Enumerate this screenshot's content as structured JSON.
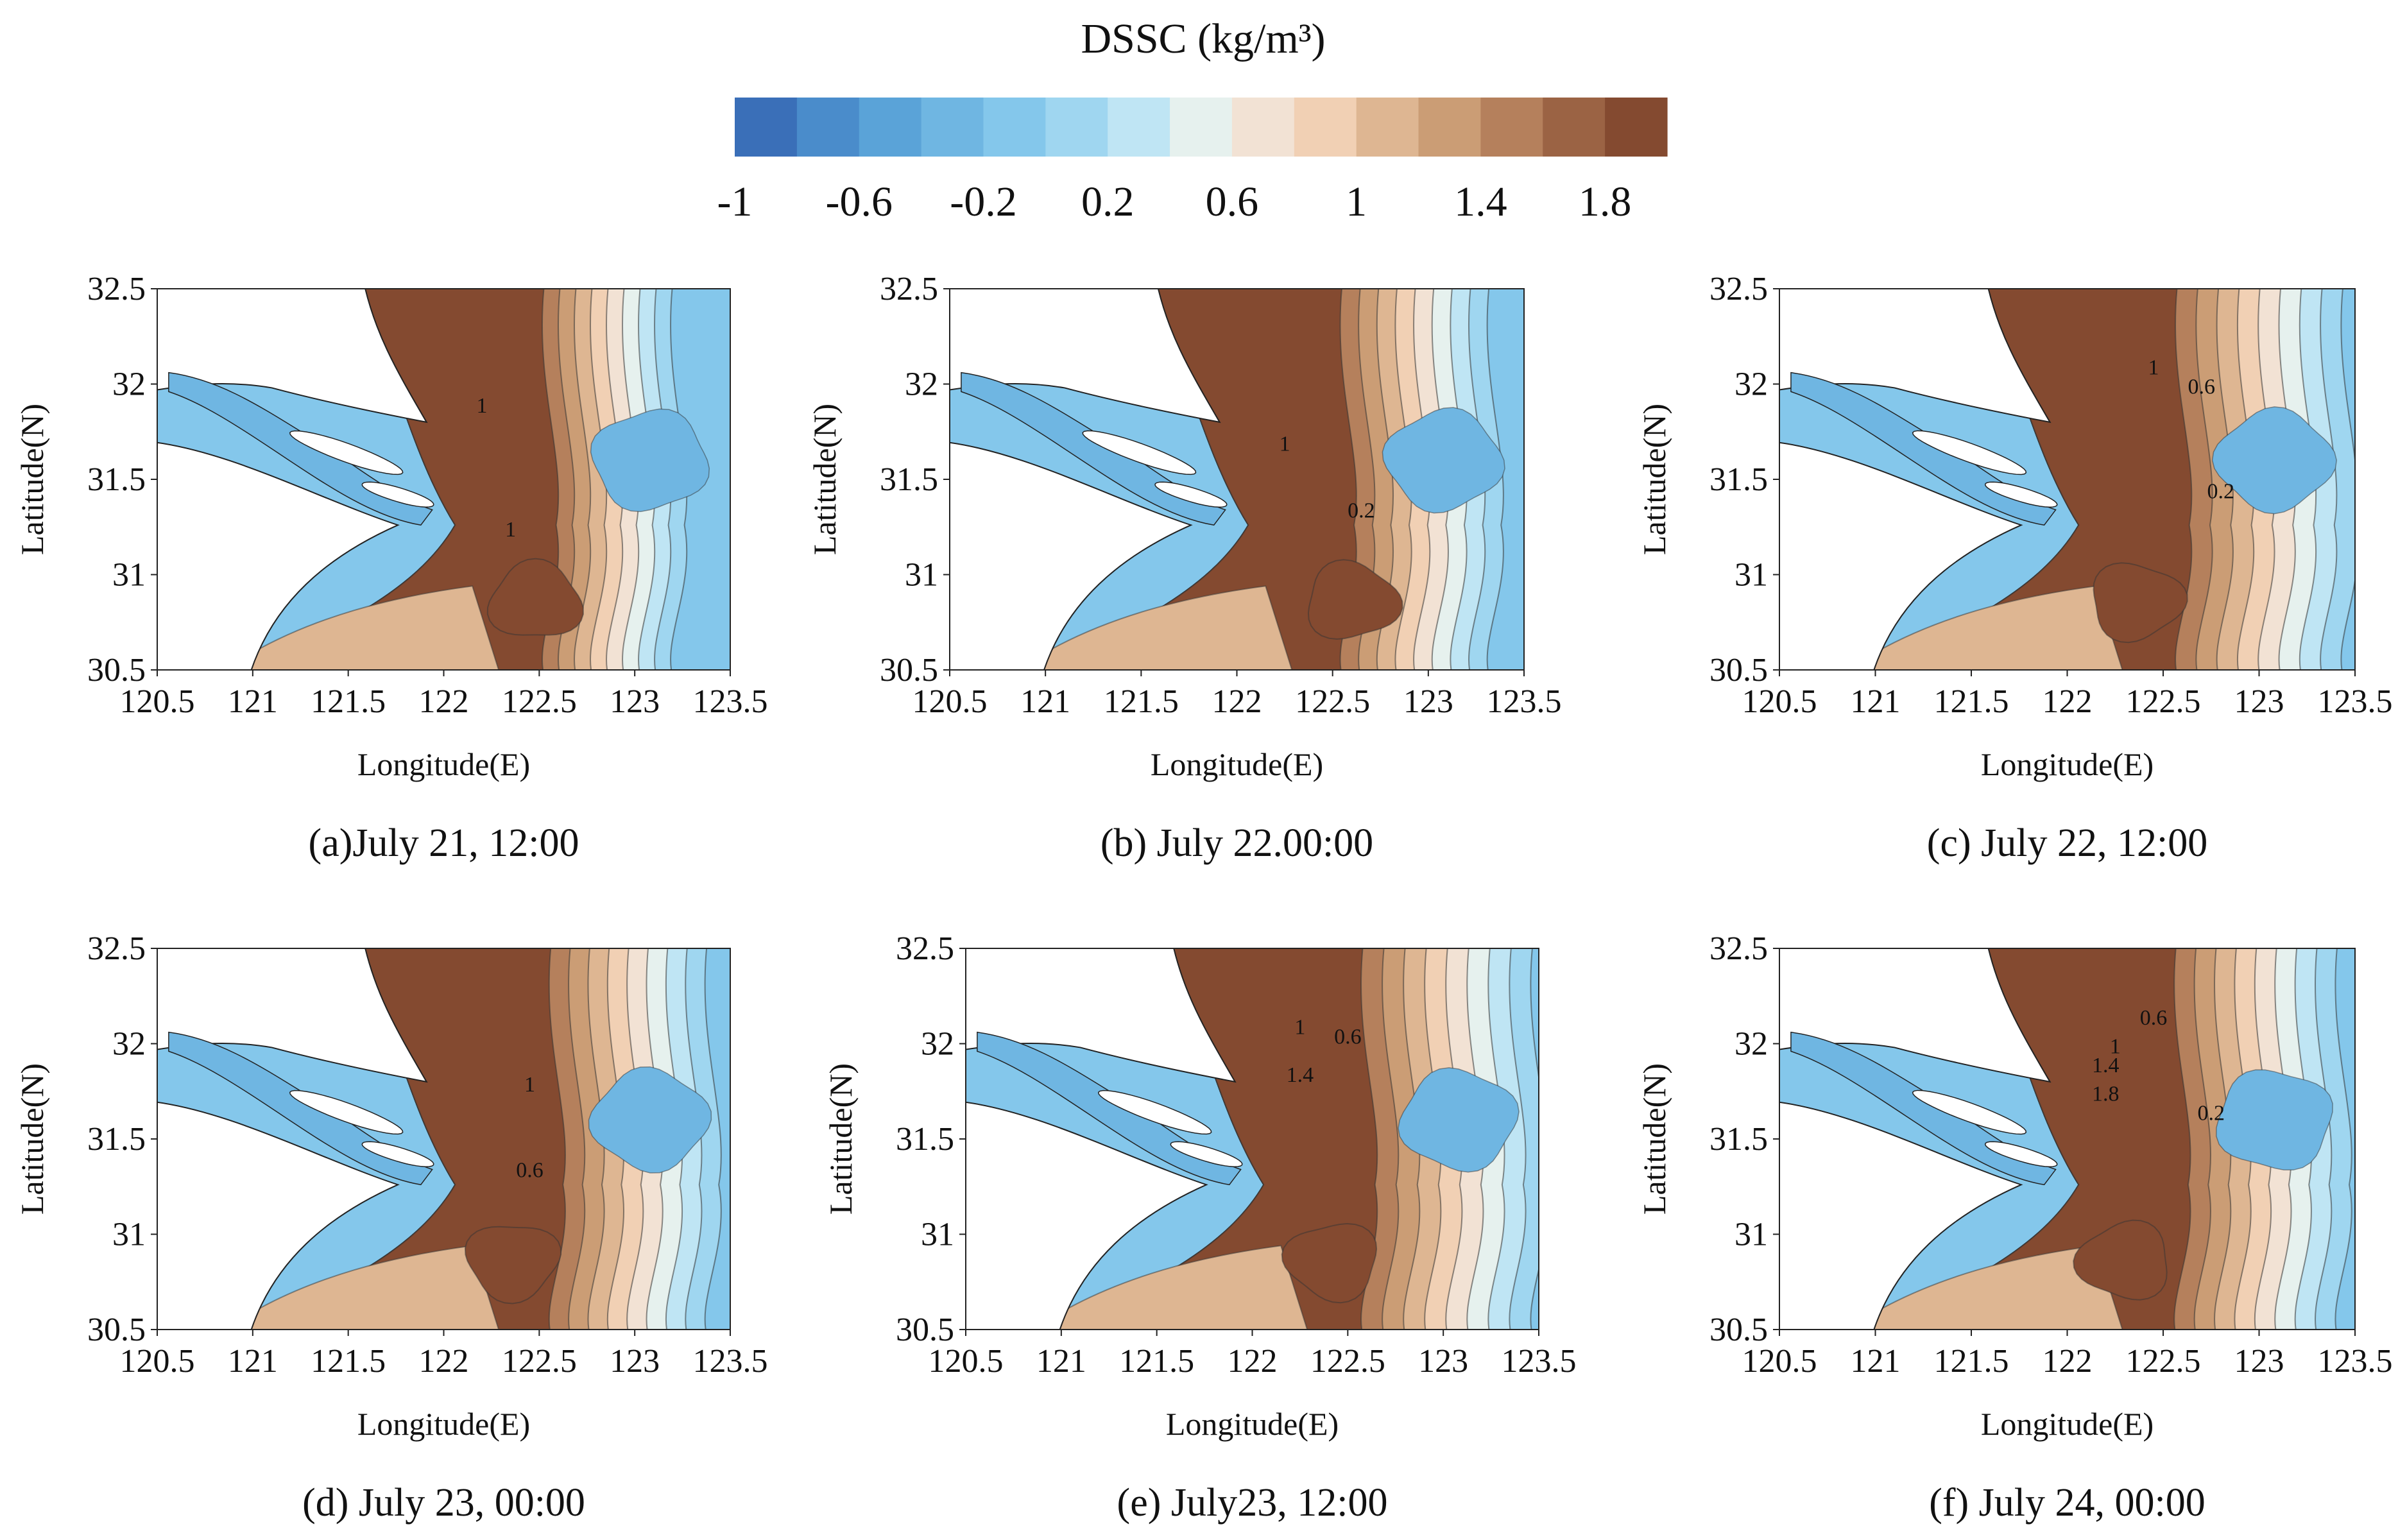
{
  "colorbar": {
    "title": "DSSC (kg/m³)",
    "tick_labels": [
      "-1",
      "-0.6",
      "-0.2",
      "0.2",
      "0.6",
      "1",
      "1.4",
      "1.8"
    ],
    "colors": [
      "#3a6fb8",
      "#4a8ccb",
      "#5aa3d8",
      "#6fb6e2",
      "#84c7eb",
      "#9fd6f0",
      "#bfe5f4",
      "#e6f1ee",
      "#f2e2d4",
      "#f1d0b4",
      "#deb692",
      "#cb9d75",
      "#b5805c",
      "#9b6344",
      "#844a30"
    ]
  },
  "chart_data": [
    {
      "type": "contour",
      "id": "a",
      "caption": "(a)July 21, 12:00",
      "xlabel": "Longitude(E)",
      "ylabel": "Latitude(N)",
      "xlim": [
        120.5,
        123.5
      ],
      "ylim": [
        30.5,
        32.5
      ],
      "xticks": [
        "120.5",
        "121",
        "121.5",
        "122",
        "122.5",
        "123",
        "123.5"
      ],
      "yticks": [
        "30.5",
        "31",
        "31.5",
        "32",
        "32.5"
      ],
      "contour_labels": [
        {
          "text": "1",
          "lon": 122.2,
          "lat": 31.85
        },
        {
          "text": "1",
          "lon": 122.35,
          "lat": 31.2
        }
      ]
    },
    {
      "type": "contour",
      "id": "b",
      "caption": "(b) July 22.00:00",
      "xlabel": "Longitude(E)",
      "ylabel": "Latitude(N)",
      "xlim": [
        120.5,
        123.5
      ],
      "ylim": [
        30.5,
        32.5
      ],
      "xticks": [
        "120.5",
        "121",
        "121.5",
        "122",
        "122.5",
        "123",
        "123.5"
      ],
      "yticks": [
        "30.5",
        "31",
        "31.5",
        "32",
        "32.5"
      ],
      "contour_labels": [
        {
          "text": "1",
          "lon": 122.25,
          "lat": 31.65
        },
        {
          "text": "0.2",
          "lon": 122.65,
          "lat": 31.3
        }
      ]
    },
    {
      "type": "contour",
      "id": "c",
      "caption": "(c) July 22, 12:00",
      "xlabel": "Longitude(E)",
      "ylabel": "Latitude(N)",
      "xlim": [
        120.5,
        123.5
      ],
      "ylim": [
        30.5,
        32.5
      ],
      "xticks": [
        "120.5",
        "121",
        "121.5",
        "122",
        "122.5",
        "123",
        "123.5"
      ],
      "yticks": [
        "30.5",
        "31",
        "31.5",
        "32",
        "32.5"
      ],
      "contour_labels": [
        {
          "text": "1",
          "lon": 122.45,
          "lat": 32.05
        },
        {
          "text": "0.6",
          "lon": 122.7,
          "lat": 31.95
        },
        {
          "text": "0.2",
          "lon": 122.8,
          "lat": 31.4
        }
      ]
    },
    {
      "type": "contour",
      "id": "d",
      "caption": "(d) July 23, 00:00",
      "xlabel": "Longitude(E)",
      "ylabel": "Latitude(N)",
      "xlim": [
        120.5,
        123.5
      ],
      "ylim": [
        30.5,
        32.5
      ],
      "xticks": [
        "120.5",
        "121",
        "121.5",
        "122",
        "122.5",
        "123",
        "123.5"
      ],
      "yticks": [
        "30.5",
        "31",
        "31.5",
        "32",
        "32.5"
      ],
      "contour_labels": [
        {
          "text": "1",
          "lon": 122.45,
          "lat": 31.75
        },
        {
          "text": "0.6",
          "lon": 122.45,
          "lat": 31.3
        }
      ]
    },
    {
      "type": "contour",
      "id": "e",
      "caption": "(e) July23, 12:00",
      "xlabel": "Longitude(E)",
      "ylabel": "Latitude(N)",
      "xlim": [
        120.5,
        123.5
      ],
      "ylim": [
        30.5,
        32.5
      ],
      "xticks": [
        "120.5",
        "121",
        "121.5",
        "122",
        "122.5",
        "123",
        "123.5"
      ],
      "yticks": [
        "30.5",
        "31",
        "31.5",
        "32",
        "32.5"
      ],
      "contour_labels": [
        {
          "text": "1",
          "lon": 122.25,
          "lat": 32.05
        },
        {
          "text": "0.6",
          "lon": 122.5,
          "lat": 32.0
        },
        {
          "text": "1.4",
          "lon": 122.25,
          "lat": 31.8
        }
      ]
    },
    {
      "type": "contour",
      "id": "f",
      "caption": "(f) July 24, 00:00",
      "xlabel": "Longitude(E)",
      "ylabel": "Latitude(N)",
      "xlim": [
        120.5,
        123.5
      ],
      "ylim": [
        30.5,
        32.5
      ],
      "xticks": [
        "120.5",
        "121",
        "121.5",
        "122",
        "122.5",
        "123",
        "123.5"
      ],
      "yticks": [
        "30.5",
        "31",
        "31.5",
        "32",
        "32.5"
      ],
      "contour_labels": [
        {
          "text": "0.6",
          "lon": 122.45,
          "lat": 32.1
        },
        {
          "text": "1",
          "lon": 122.25,
          "lat": 31.95
        },
        {
          "text": "1.4",
          "lon": 122.2,
          "lat": 31.85
        },
        {
          "text": "1.8",
          "lon": 122.2,
          "lat": 31.7
        },
        {
          "text": "0.2",
          "lon": 122.75,
          "lat": 31.6
        }
      ]
    }
  ]
}
